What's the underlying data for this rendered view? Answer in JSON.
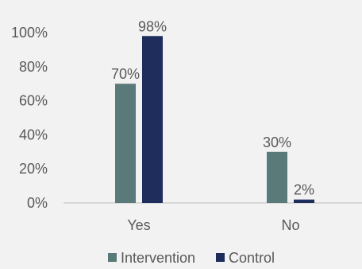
{
  "chart_data": {
    "type": "bar",
    "title": "",
    "xlabel": "",
    "ylabel": "",
    "categories": [
      "Yes",
      "No"
    ],
    "series": [
      {
        "name": "Intervention",
        "values": [
          70,
          30
        ],
        "labels": [
          "70%",
          "30%"
        ],
        "color": "#5a7a79"
      },
      {
        "name": "Control",
        "values": [
          98,
          2
        ],
        "labels": [
          "98%",
          "2%"
        ],
        "color": "#1f2d5c"
      }
    ],
    "y_ticks": [
      "0%",
      "20%",
      "40%",
      "60%",
      "80%",
      "100%"
    ],
    "ylim": [
      0,
      100
    ],
    "grid": false,
    "legend_position": "bottom"
  }
}
